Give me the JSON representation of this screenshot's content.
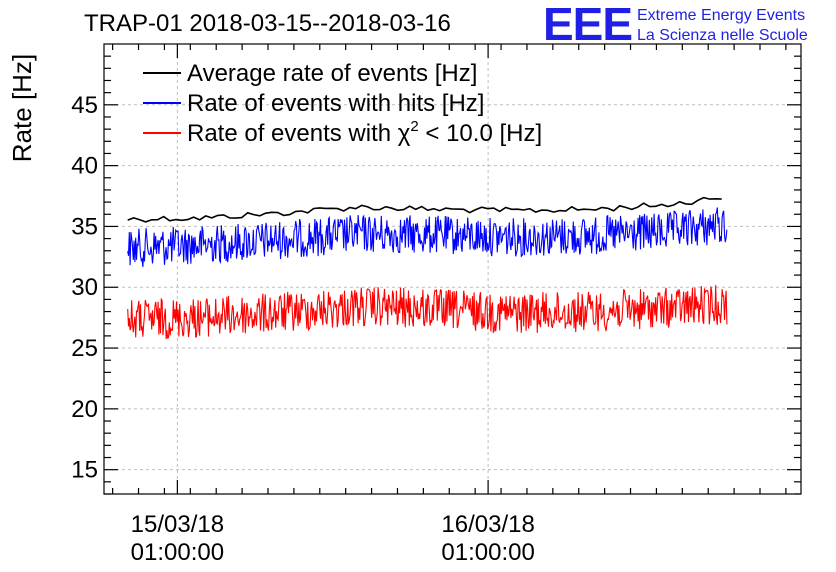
{
  "title": "TRAP-01 2018-03-15--2018-03-16",
  "logo": {
    "text": "EEE",
    "line1": "Extreme Energy Events",
    "line2": "La Scienza nelle Scuole"
  },
  "chart_data": {
    "type": "line",
    "ylabel": "Rate [Hz]",
    "ylim": [
      13,
      50
    ],
    "xlim": [
      "2018-03-14 19:20",
      "2018-03-17 01:10"
    ],
    "y_ticks": [
      15,
      20,
      25,
      30,
      35,
      40,
      45
    ],
    "x_ticks": [
      {
        "value": "2018-03-15 01:00:00",
        "label_date": "15/03/18",
        "label_time": "01:00:00"
      },
      {
        "value": "2018-03-16 01:00:00",
        "label_date": "16/03/18",
        "label_time": "01:00:00"
      }
    ],
    "grid": true,
    "legend_position": "top-left",
    "series": [
      {
        "name": "Average rate of events [Hz]",
        "color": "#000000",
        "x": [
          "2018-03-14 21:10",
          "2018-03-15 03:00",
          "2018-03-15 09:00",
          "2018-03-15 15:00",
          "2018-03-15 21:00",
          "2018-03-16 03:00",
          "2018-03-16 09:00",
          "2018-03-16 15:00",
          "2018-03-16 19:30"
        ],
        "values": [
          35.6,
          35.7,
          36.1,
          36.6,
          36.4,
          36.3,
          36.4,
          36.8,
          37.5
        ]
      },
      {
        "name": "Rate of events with hits [Hz]",
        "color": "#0000ff",
        "x": [
          "2018-03-14 21:10",
          "2018-03-15 03:00",
          "2018-03-15 09:00",
          "2018-03-15 15:00",
          "2018-03-15 21:00",
          "2018-03-16 03:00",
          "2018-03-16 09:00",
          "2018-03-16 15:00",
          "2018-03-16 19:30"
        ],
        "values": [
          33.2,
          33.5,
          33.9,
          34.4,
          34.3,
          34.1,
          34.2,
          34.6,
          35.2
        ]
      },
      {
        "name_prefix": "Rate of events with ",
        "name_symbol": "χ",
        "name_sup": "2",
        "name_suffix": " < 10.0 [Hz]",
        "color": "#ff0000",
        "x": [
          "2018-03-14 21:10",
          "2018-03-15 03:00",
          "2018-03-15 09:00",
          "2018-03-15 15:00",
          "2018-03-15 21:00",
          "2018-03-16 03:00",
          "2018-03-16 09:00",
          "2018-03-16 15:00",
          "2018-03-16 19:30"
        ],
        "values": [
          27.3,
          27.5,
          27.9,
          28.4,
          28.2,
          27.9,
          28.0,
          28.3,
          28.6
        ]
      }
    ]
  }
}
